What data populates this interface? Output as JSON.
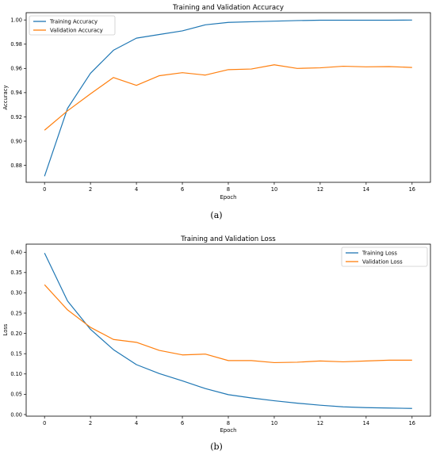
{
  "chart_data": [
    {
      "type": "line",
      "panel": "(a)",
      "title": "Training and Validation Accuracy",
      "xlabel": "Epoch",
      "ylabel": "Accuracy",
      "xlim": [
        -0.8,
        16.8
      ],
      "ylim": [
        0.866,
        1.006
      ],
      "xticks": [
        0,
        2,
        4,
        6,
        8,
        10,
        12,
        14,
        16
      ],
      "yticks": [
        0.88,
        0.9,
        0.92,
        0.94,
        0.96,
        0.98,
        1.0
      ],
      "ytick_labels": [
        "0.88",
        "0.90",
        "0.92",
        "0.94",
        "0.96",
        "0.98",
        "1.00"
      ],
      "legend_position": "upper-left",
      "grid": false,
      "x": [
        0,
        1,
        2,
        3,
        4,
        5,
        6,
        7,
        8,
        9,
        10,
        11,
        12,
        13,
        14,
        15,
        16
      ],
      "series": [
        {
          "name": "Training Accuracy",
          "color": "#1f77b4",
          "values": [
            0.871,
            0.927,
            0.956,
            0.975,
            0.985,
            0.988,
            0.991,
            0.996,
            0.998,
            0.9985,
            0.999,
            0.9995,
            0.9998,
            0.9998,
            0.9998,
            0.9998,
            0.9999
          ]
        },
        {
          "name": "Validation Accuracy",
          "color": "#ff7f0e",
          "values": [
            0.909,
            0.925,
            0.939,
            0.9525,
            0.946,
            0.954,
            0.9565,
            0.9545,
            0.959,
            0.9595,
            0.963,
            0.96,
            0.9605,
            0.9618,
            0.9613,
            0.9615,
            0.9608
          ]
        }
      ]
    },
    {
      "type": "line",
      "panel": "(b)",
      "title": "Training and Validation Loss",
      "xlabel": "Epoch",
      "ylabel": "Loss",
      "xlim": [
        -0.8,
        16.8
      ],
      "ylim": [
        -0.004,
        0.42
      ],
      "xticks": [
        0,
        2,
        4,
        6,
        8,
        10,
        12,
        14,
        16
      ],
      "yticks": [
        0.0,
        0.05,
        0.1,
        0.15,
        0.2,
        0.25,
        0.3,
        0.35,
        0.4
      ],
      "ytick_labels": [
        "0.00",
        "0.05",
        "0.10",
        "0.15",
        "0.20",
        "0.25",
        "0.30",
        "0.35",
        "0.40"
      ],
      "legend_position": "upper-right",
      "grid": false,
      "x": [
        0,
        1,
        2,
        3,
        4,
        5,
        6,
        7,
        8,
        9,
        10,
        11,
        12,
        13,
        14,
        15,
        16
      ],
      "series": [
        {
          "name": "Training Loss",
          "color": "#1f77b4",
          "values": [
            0.398,
            0.28,
            0.21,
            0.16,
            0.123,
            0.101,
            0.083,
            0.064,
            0.049,
            0.041,
            0.034,
            0.028,
            0.023,
            0.019,
            0.017,
            0.016,
            0.015
          ]
        },
        {
          "name": "Validation Loss",
          "color": "#ff7f0e",
          "values": [
            0.32,
            0.258,
            0.215,
            0.185,
            0.178,
            0.158,
            0.147,
            0.149,
            0.133,
            0.133,
            0.128,
            0.129,
            0.132,
            0.13,
            0.132,
            0.134,
            0.134
          ]
        }
      ]
    }
  ]
}
